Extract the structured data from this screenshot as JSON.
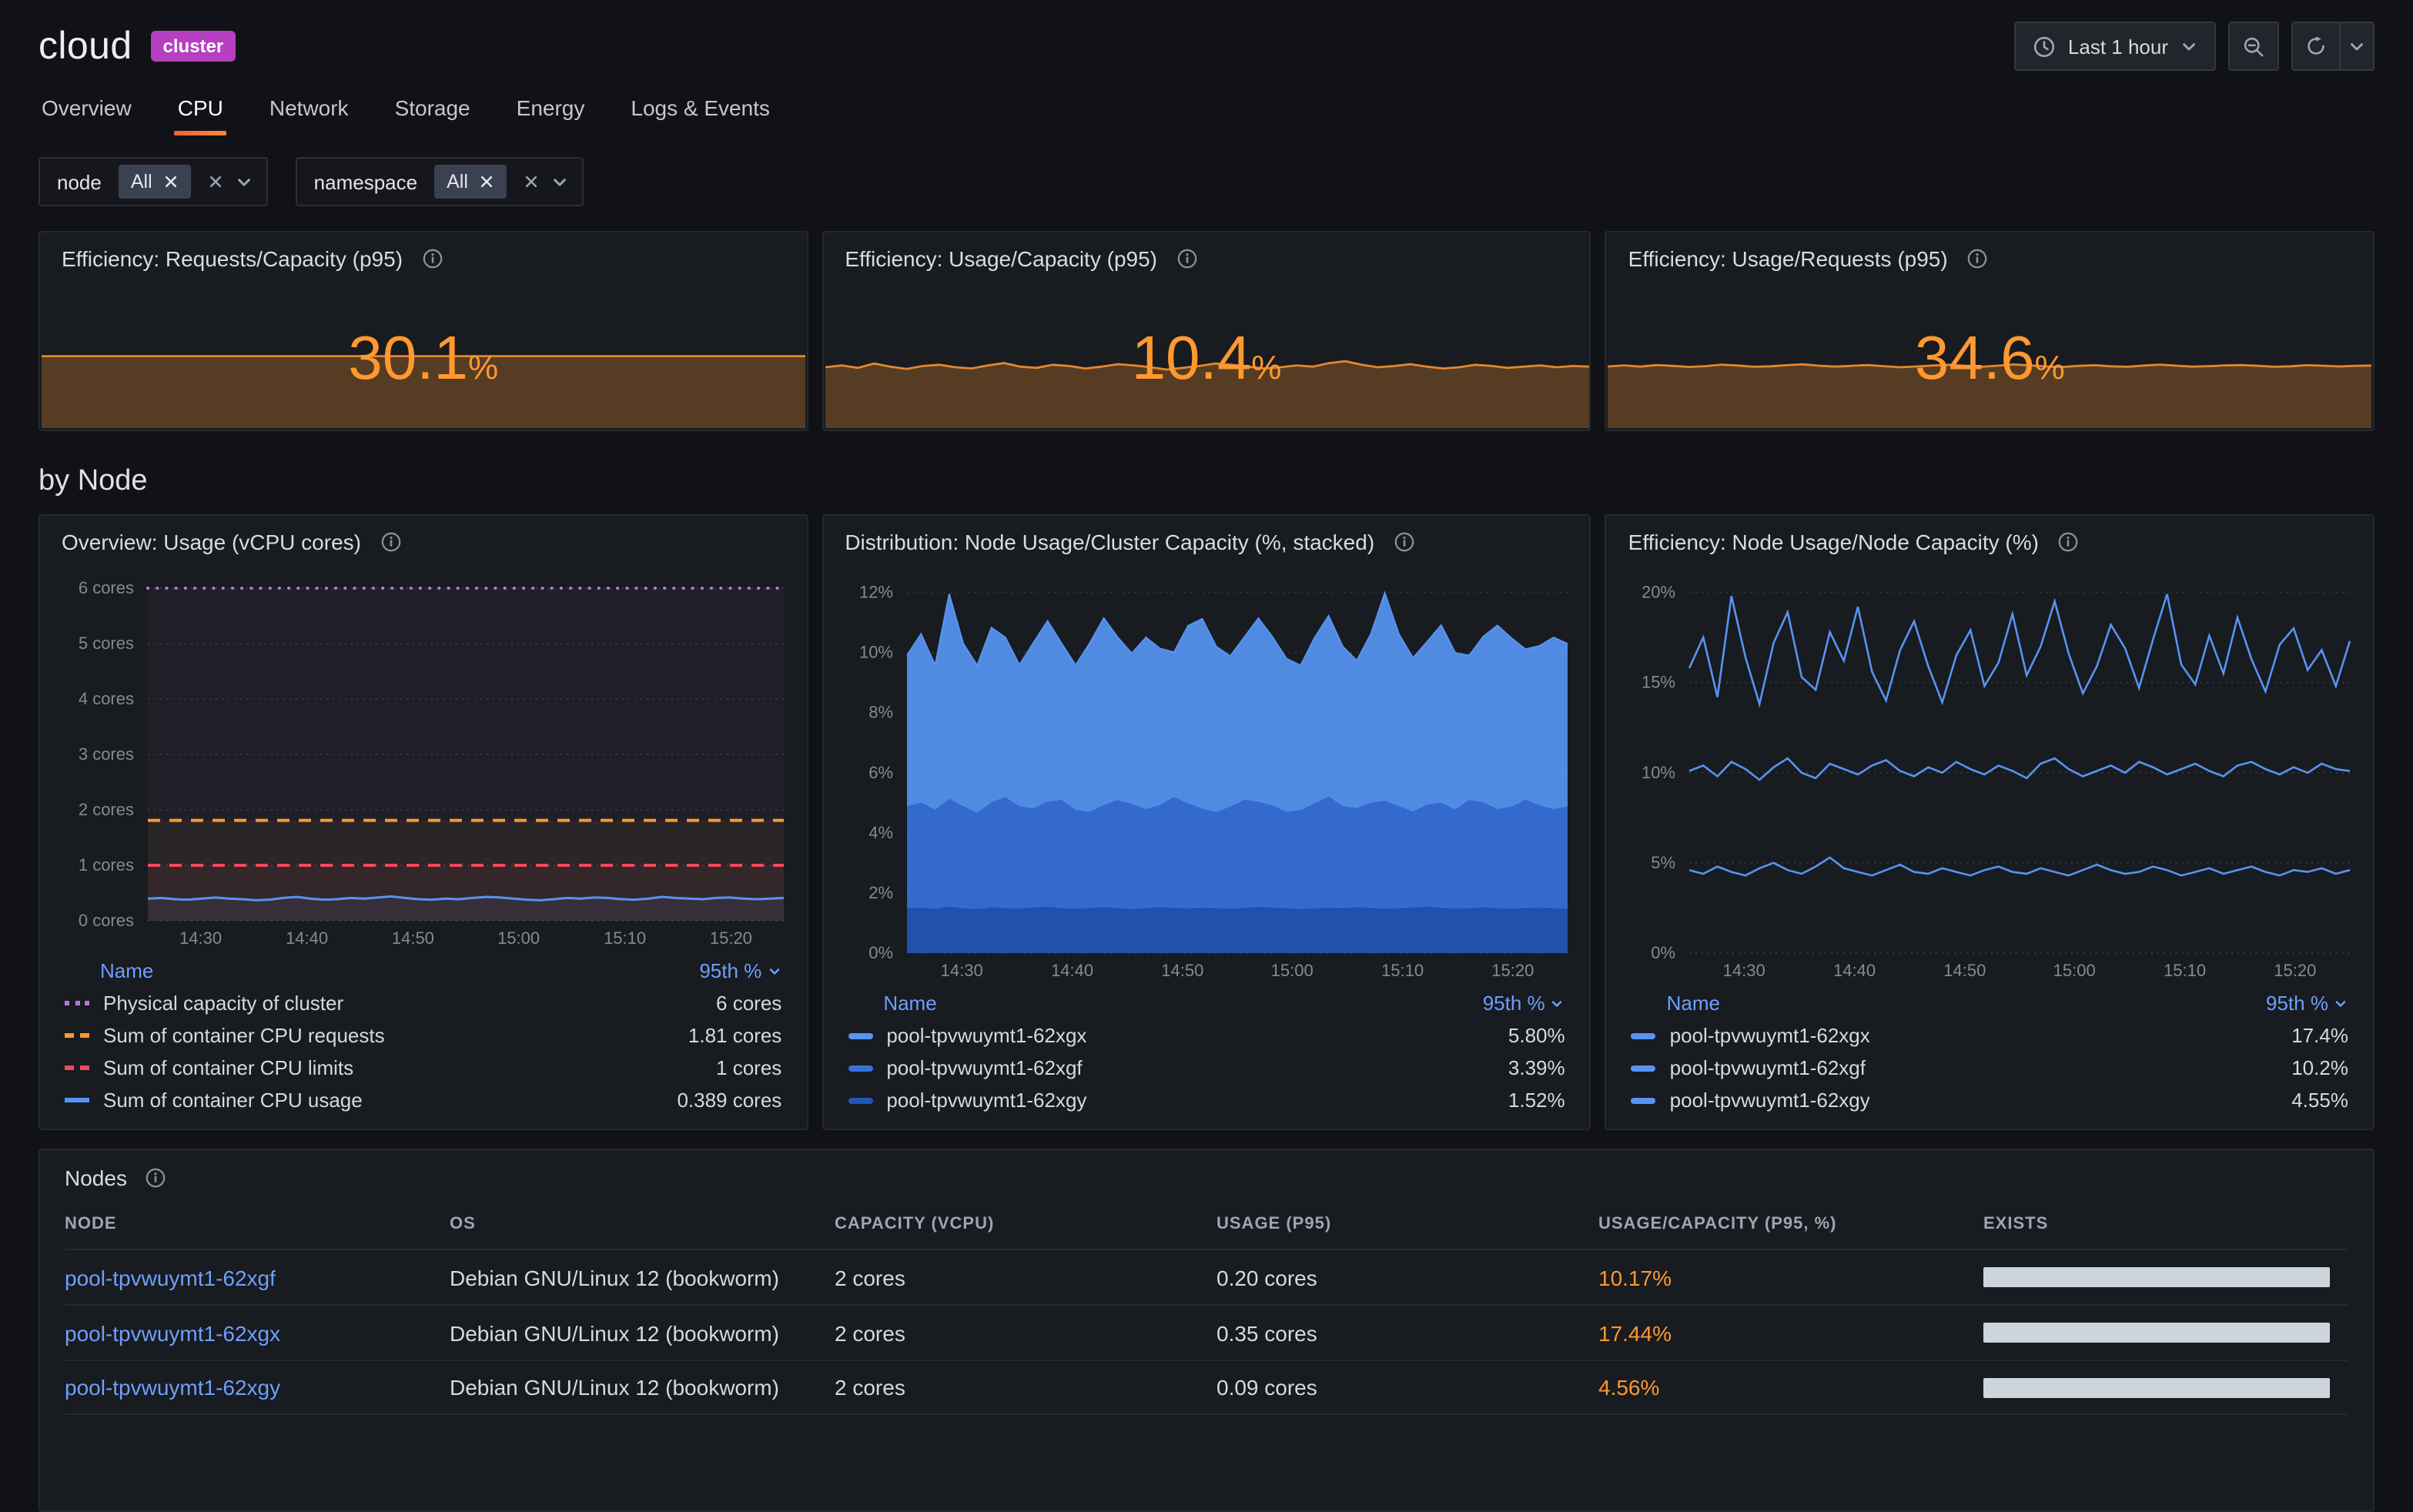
{
  "header": {
    "title": "cloud",
    "badge": "cluster",
    "time_label": "Last 1 hour"
  },
  "tabs": [
    {
      "label": "Overview",
      "active": false
    },
    {
      "label": "CPU",
      "active": true
    },
    {
      "label": "Network",
      "active": false
    },
    {
      "label": "Storage",
      "active": false
    },
    {
      "label": "Energy",
      "active": false
    },
    {
      "label": "Logs & Events",
      "active": false
    }
  ],
  "filters": [
    {
      "label": "node",
      "value": "All"
    },
    {
      "label": "namespace",
      "value": "All"
    }
  ],
  "section_title": "by Node",
  "colors": {
    "accent_orange": "#FF9830",
    "link_blue": "#6E9FFF",
    "badge_purple": "#B53FC0",
    "panel_bg": "#181B1F",
    "page_bg": "#111217"
  },
  "icons": [
    "clock-icon",
    "chevron-down-icon",
    "zoom-out-icon",
    "refresh-icon",
    "info-icon",
    "close-icon",
    "sort-desc-icon"
  ],
  "stats": [
    {
      "title": "Efficiency: Requests/Capacity (p95)",
      "value": "30.1",
      "unit": "%",
      "color": "#FF9830",
      "spark_ylim": [
        0,
        40
      ],
      "spark": [
        30.1,
        30.1
      ]
    },
    {
      "title": "Efficiency: Usage/Capacity (p95)",
      "value": "10.4",
      "unit": "%",
      "color": "#FF9830",
      "spark_ylim": [
        0,
        16
      ],
      "spark": [
        10.2,
        10.5,
        10.1,
        10.8,
        10.3,
        9.9,
        10.4,
        10.6,
        10.2,
        10.0,
        10.5,
        10.9,
        10.3,
        10.1,
        10.6,
        10.4,
        10.0,
        10.3,
        10.7,
        10.5,
        10.2,
        9.8,
        10.1,
        10.4,
        10.8,
        10.6,
        10.3,
        10.0,
        10.2,
        10.5,
        10.3,
        10.9,
        11.2,
        10.6,
        10.2,
        10.4,
        10.7,
        10.3,
        10.0,
        10.2,
        10.6,
        10.4,
        10.1,
        10.3,
        10.5,
        10.2,
        10.4,
        10.3
      ]
    },
    {
      "title": "Efficiency: Usage/Requests (p95)",
      "value": "34.6",
      "unit": "%",
      "color": "#FF9830",
      "spark_ylim": [
        0,
        53
      ],
      "spark": [
        34.2,
        34.8,
        34.1,
        35.0,
        34.5,
        33.9,
        34.4,
        35.2,
        34.7,
        34.0,
        34.3,
        34.9,
        35.4,
        34.6,
        34.1,
        34.5,
        35.0,
        34.4,
        33.8,
        34.2,
        34.7,
        35.1,
        34.5,
        34.0,
        34.6,
        35.3,
        34.8,
        34.2,
        33.9,
        34.5,
        34.9,
        34.3,
        34.0,
        34.7,
        35.2,
        34.6,
        34.1,
        34.4,
        34.8,
        35.0,
        34.5,
        34.0,
        34.3,
        34.9,
        34.6,
        34.2,
        34.5,
        34.7
      ]
    }
  ],
  "chart_data": [
    {
      "id": "overview-usage",
      "type": "line",
      "title": "Overview: Usage (vCPU cores)",
      "ylim": [
        0,
        6.25
      ],
      "yticks": [
        0,
        1,
        2,
        3,
        4,
        5,
        6
      ],
      "ytick_suffix": " cores",
      "margin_left": 62,
      "xticklabels": [
        "14:30",
        "14:40",
        "14:50",
        "15:00",
        "15:10",
        "15:20"
      ],
      "legend_header": [
        "Name",
        "95th %"
      ],
      "series": [
        {
          "name": "Physical capacity of cluster",
          "value_label": "6 cores",
          "color": "#B877D9",
          "style": "dotted",
          "swatch": "dotted",
          "width": 2,
          "fill": 0.05,
          "values": [
            6
          ]
        },
        {
          "name": "Sum of container CPU requests",
          "value_label": "1.81 cores",
          "color": "#FF9830",
          "style": "dashed",
          "swatch": "dashed",
          "width": 2,
          "fill": 0.05,
          "values": [
            1.81
          ]
        },
        {
          "name": "Sum of container CPU limits",
          "value_label": "1 cores",
          "color": "#F2495C",
          "style": "dashed",
          "swatch": "dashed",
          "width": 2,
          "fill": 0.05,
          "values": [
            1
          ]
        },
        {
          "name": "Sum of container CPU usage",
          "value_label": "0.389 cores",
          "color": "#5794F2",
          "style": "solid",
          "swatch": "solid",
          "width": 1.5,
          "fill": 0.08,
          "values": [
            0.4,
            0.41,
            0.39,
            0.38,
            0.4,
            0.42,
            0.4,
            0.39,
            0.37,
            0.38,
            0.41,
            0.43,
            0.4,
            0.38,
            0.39,
            0.41,
            0.4,
            0.42,
            0.44,
            0.41,
            0.39,
            0.38,
            0.4,
            0.39,
            0.41,
            0.43,
            0.42,
            0.4,
            0.38,
            0.37,
            0.39,
            0.41,
            0.4,
            0.42,
            0.41,
            0.39,
            0.38,
            0.4,
            0.43,
            0.41,
            0.4,
            0.39,
            0.41,
            0.42,
            0.4,
            0.39,
            0.4,
            0.41
          ]
        }
      ]
    },
    {
      "id": "distribution-stacked",
      "type": "stacked_area",
      "title": "Distribution: Node Usage/Cluster Capacity (%, stacked)",
      "ylim": [
        0,
        12.6
      ],
      "yticks": [
        0,
        2,
        4,
        6,
        8,
        10,
        12
      ],
      "ytick_suffix": "%",
      "margin_left": 46,
      "xticklabels": [
        "14:30",
        "14:40",
        "14:50",
        "15:00",
        "15:10",
        "15:20"
      ],
      "legend_header": [
        "Name",
        "95th %"
      ],
      "series": [
        {
          "name": "pool-tpvwuymt1-62xgx",
          "value_label": "5.80%",
          "color": "#5794F2",
          "swatch": "bar",
          "values": [
            5.0,
            5.6,
            4.8,
            6.8,
            5.4,
            4.9,
            5.8,
            5.3,
            4.7,
            5.5,
            6.0,
            5.2,
            4.8,
            5.6,
            6.2,
            5.4,
            5.0,
            5.7,
            5.2,
            4.8,
            5.9,
            6.3,
            5.5,
            5.0,
            5.4,
            6.1,
            5.6,
            5.1,
            4.8,
            5.5,
            6.0,
            5.3,
            4.9,
            5.6,
            6.9,
            5.7,
            5.1,
            5.4,
            5.9,
            5.2,
            4.8,
            5.5,
            6.1,
            5.6,
            5.0,
            5.3,
            5.7,
            5.4
          ]
        },
        {
          "name": "pool-tpvwuymt1-62xgf",
          "value_label": "3.39%",
          "color": "#3871DC",
          "swatch": "bar",
          "values": [
            3.4,
            3.5,
            3.3,
            3.6,
            3.4,
            3.2,
            3.5,
            3.7,
            3.4,
            3.3,
            3.5,
            3.6,
            3.3,
            3.2,
            3.4,
            3.6,
            3.5,
            3.3,
            3.4,
            3.7,
            3.5,
            3.3,
            3.2,
            3.4,
            3.6,
            3.5,
            3.4,
            3.2,
            3.3,
            3.5,
            3.7,
            3.4,
            3.3,
            3.5,
            3.6,
            3.4,
            3.2,
            3.4,
            3.5,
            3.3,
            3.6,
            3.5,
            3.3,
            3.4,
            3.6,
            3.4,
            3.3,
            3.4
          ]
        },
        {
          "name": "pool-tpvwuymt1-62xgy",
          "value_label": "1.52%",
          "color": "#2456B8",
          "swatch": "bar",
          "values": [
            1.5,
            1.52,
            1.48,
            1.55,
            1.5,
            1.47,
            1.53,
            1.5,
            1.49,
            1.52,
            1.55,
            1.5,
            1.48,
            1.51,
            1.54,
            1.5,
            1.47,
            1.5,
            1.53,
            1.51,
            1.49,
            1.52,
            1.5,
            1.48,
            1.51,
            1.54,
            1.52,
            1.5,
            1.47,
            1.49,
            1.52,
            1.5,
            1.53,
            1.51,
            1.48,
            1.5,
            1.52,
            1.55,
            1.51,
            1.49,
            1.5,
            1.53,
            1.5,
            1.48,
            1.51,
            1.52,
            1.5,
            1.49
          ]
        }
      ]
    },
    {
      "id": "efficiency-node",
      "type": "line",
      "title": "Efficiency: Node Usage/Node Capacity (%)",
      "ylim": [
        0,
        21
      ],
      "yticks": [
        0,
        5,
        10,
        15,
        20
      ],
      "ytick_suffix": "%",
      "margin_left": 46,
      "xticklabels": [
        "14:30",
        "14:40",
        "14:50",
        "15:00",
        "15:10",
        "15:20"
      ],
      "legend_header": [
        "Name",
        "95th %"
      ],
      "series": [
        {
          "name": "pool-tpvwuymt1-62xgx",
          "value_label": "17.4%",
          "color": "#5794F2",
          "style": "solid",
          "swatch": "bar",
          "width": 1.3,
          "fill": 0,
          "values": [
            15.8,
            17.5,
            14.2,
            19.8,
            16.4,
            13.8,
            17.2,
            18.9,
            15.3,
            14.6,
            17.8,
            16.2,
            19.2,
            15.6,
            14.0,
            16.8,
            18.4,
            15.9,
            13.9,
            16.5,
            17.9,
            14.8,
            16.1,
            18.8,
            15.4,
            17.0,
            19.5,
            16.6,
            14.4,
            15.9,
            18.2,
            16.9,
            14.7,
            17.4,
            19.9,
            16.0,
            14.9,
            17.6,
            15.5,
            18.6,
            16.3,
            14.5,
            17.1,
            18.0,
            15.7,
            16.8,
            14.8,
            17.3
          ]
        },
        {
          "name": "pool-tpvwuymt1-62xgf",
          "value_label": "10.2%",
          "color": "#5794F2",
          "style": "solid",
          "swatch": "bar",
          "width": 1.3,
          "fill": 0,
          "values": [
            10.1,
            10.4,
            9.8,
            10.6,
            10.2,
            9.6,
            10.3,
            10.8,
            10.0,
            9.7,
            10.5,
            10.2,
            9.9,
            10.4,
            10.7,
            10.1,
            9.8,
            10.3,
            10.0,
            10.6,
            10.2,
            9.9,
            10.4,
            10.1,
            9.7,
            10.5,
            10.8,
            10.2,
            9.8,
            10.1,
            10.4,
            10.0,
            10.6,
            10.3,
            9.9,
            10.2,
            10.5,
            10.1,
            9.8,
            10.4,
            10.6,
            10.2,
            9.9,
            10.3,
            10.0,
            10.5,
            10.2,
            10.1
          ]
        },
        {
          "name": "pool-tpvwuymt1-62xgy",
          "value_label": "4.55%",
          "color": "#5794F2",
          "style": "solid",
          "swatch": "bar",
          "width": 1.3,
          "fill": 0,
          "values": [
            4.6,
            4.4,
            4.8,
            4.5,
            4.3,
            4.7,
            5.0,
            4.6,
            4.4,
            4.8,
            5.3,
            4.7,
            4.5,
            4.3,
            4.6,
            4.9,
            4.5,
            4.4,
            4.7,
            4.5,
            4.3,
            4.6,
            4.8,
            4.5,
            4.4,
            4.7,
            4.5,
            4.3,
            4.6,
            4.9,
            4.6,
            4.4,
            4.5,
            4.8,
            4.6,
            4.3,
            4.5,
            4.7,
            4.4,
            4.6,
            4.8,
            4.5,
            4.3,
            4.6,
            4.5,
            4.7,
            4.4,
            4.6
          ]
        }
      ]
    }
  ],
  "nodes_table": {
    "title": "Nodes",
    "exists_bar_color": "#CDD5DC",
    "columns": [
      "NODE",
      "OS",
      "CAPACITY (VCPU)",
      "USAGE (P95)",
      "USAGE/CAPACITY (P95, %)",
      "EXISTS"
    ],
    "rows": [
      {
        "node": "pool-tpvwuymt1-62xgf",
        "os": "Debian GNU/Linux 12 (bookworm)",
        "capacity": "2 cores",
        "usage": "0.20 cores",
        "usage_capacity": "10.17%",
        "exists": 1
      },
      {
        "node": "pool-tpvwuymt1-62xgx",
        "os": "Debian GNU/Linux 12 (bookworm)",
        "capacity": "2 cores",
        "usage": "0.35 cores",
        "usage_capacity": "17.44%",
        "exists": 1
      },
      {
        "node": "pool-tpvwuymt1-62xgy",
        "os": "Debian GNU/Linux 12 (bookworm)",
        "capacity": "2 cores",
        "usage": "0.09 cores",
        "usage_capacity": "4.56%",
        "exists": 1
      }
    ]
  }
}
